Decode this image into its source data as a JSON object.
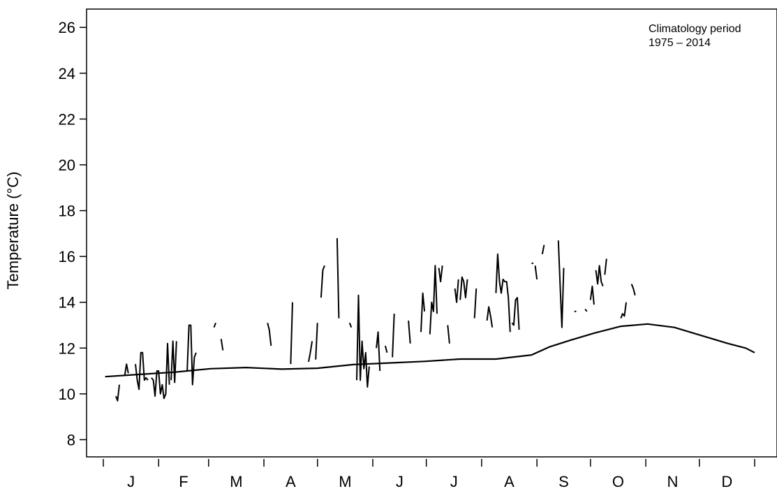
{
  "chart_data": {
    "type": "line",
    "ylabel": "Temperature (°C)",
    "ylim": [
      7.25,
      26.8
    ],
    "yticks": [
      8,
      10,
      12,
      14,
      16,
      18,
      20,
      22,
      24,
      26
    ],
    "month_labels": [
      "J",
      "F",
      "M",
      "A",
      "M",
      "J",
      "J",
      "A",
      "S",
      "O",
      "N",
      "D"
    ],
    "annotation": [
      "Climatology period",
      "1975 – 2014"
    ],
    "grid": false,
    "series": [
      {
        "role": "climatology",
        "x": [
          1,
          20,
          40,
          60,
          80,
          100,
          120,
          140,
          160,
          180,
          200,
          220,
          240,
          250,
          262,
          275,
          290,
          305,
          320,
          335,
          350,
          360,
          365
        ],
        "y": [
          10.75,
          10.85,
          10.95,
          11.1,
          11.15,
          11.08,
          11.12,
          11.28,
          11.35,
          11.42,
          11.52,
          11.52,
          11.7,
          12.05,
          12.35,
          12.65,
          12.95,
          13.05,
          12.9,
          12.55,
          12.2,
          12.0,
          11.8
        ]
      },
      {
        "role": "observed",
        "segments": [
          {
            "x": [
              7,
              8,
              9
            ],
            "y": [
              9.9,
              9.7,
              10.4
            ]
          },
          {
            "x": [
              12,
              13,
              14
            ],
            "y": [
              10.8,
              11.3,
              10.9
            ]
          },
          {
            "x": [
              18,
              19,
              20,
              21,
              22,
              23,
              24,
              25
            ],
            "y": [
              11.3,
              10.6,
              10.2,
              11.8,
              11.8,
              10.6,
              10.7,
              10.6
            ]
          },
          {
            "x": [
              27,
              28,
              29,
              30,
              31,
              32,
              33,
              34,
              35,
              36,
              37
            ],
            "y": [
              10.7,
              10.6,
              9.9,
              11.0,
              11.0,
              10.0,
              10.4,
              9.8,
              10.0,
              12.2,
              10.4
            ]
          },
          {
            "x": [
              38,
              39,
              40,
              41
            ],
            "y": [
              10.6,
              12.3,
              10.5,
              12.3
            ]
          },
          {
            "x": [
              47,
              48,
              49,
              50,
              51,
              52
            ],
            "y": [
              11.0,
              13.0,
              13.0,
              10.4,
              11.6,
              11.8
            ]
          },
          {
            "x": [
              62,
              63
            ],
            "y": [
              12.9,
              13.1
            ]
          },
          {
            "x": [
              66,
              67
            ],
            "y": [
              12.4,
              11.9
            ]
          },
          {
            "x": [
              92,
              93,
              94
            ],
            "y": [
              13.1,
              12.8,
              12.1
            ]
          },
          {
            "x": [
              105,
              106
            ],
            "y": [
              11.3,
              14.0
            ]
          },
          {
            "x": [
              115,
              116,
              117
            ],
            "y": [
              11.4,
              11.8,
              12.3
            ]
          },
          {
            "x": [
              119,
              120
            ],
            "y": [
              11.5,
              13.1
            ]
          },
          {
            "x": [
              122,
              123,
              124
            ],
            "y": [
              14.2,
              15.4,
              15.6
            ]
          },
          {
            "x": [
              131,
              132
            ],
            "y": [
              16.8,
              13.3
            ]
          },
          {
            "x": [
              138,
              139
            ],
            "y": [
              13.1,
              12.9
            ]
          },
          {
            "x": [
              142,
              143,
              144,
              145,
              146,
              147,
              148,
              149
            ],
            "y": [
              10.6,
              14.3,
              10.6,
              12.3,
              11.1,
              11.8,
              10.3,
              11.2
            ]
          },
          {
            "x": [
              153,
              154,
              155
            ],
            "y": [
              12.0,
              12.7,
              11.0
            ]
          },
          {
            "x": [
              158,
              159
            ],
            "y": [
              12.1,
              11.8
            ]
          },
          {
            "x": [
              162,
              163
            ],
            "y": [
              11.6,
              13.5
            ]
          },
          {
            "x": [
              171,
              172
            ],
            "y": [
              13.2,
              12.2
            ]
          },
          {
            "x": [
              178,
              179,
              180
            ],
            "y": [
              12.7,
              14.4,
              13.6
            ]
          },
          {
            "x": [
              183,
              184,
              185,
              186,
              187
            ],
            "y": [
              12.6,
              14.0,
              13.6,
              15.6,
              13.5
            ]
          },
          {
            "x": [
              188,
              189,
              190
            ],
            "y": [
              15.5,
              14.9,
              15.6
            ]
          },
          {
            "x": [
              193,
              194
            ],
            "y": [
              13.0,
              12.2
            ]
          },
          {
            "x": [
              197,
              198,
              199
            ],
            "y": [
              14.6,
              14.0,
              15.0
            ]
          },
          {
            "x": [
              200,
              201,
              202,
              203,
              204
            ],
            "y": [
              14.1,
              15.1,
              14.9,
              14.2,
              15.0
            ]
          },
          {
            "x": [
              208,
              209
            ],
            "y": [
              13.3,
              14.6
            ]
          },
          {
            "x": [
              215,
              216,
              217,
              218
            ],
            "y": [
              13.2,
              13.8,
              13.4,
              12.9
            ]
          },
          {
            "x": [
              220,
              221,
              222,
              223,
              224,
              225,
              226,
              227,
              228
            ],
            "y": [
              14.4,
              16.1,
              14.9,
              14.4,
              15.0,
              14.9,
              14.9,
              14.2,
              12.7
            ]
          },
          {
            "x": [
              229,
              230,
              231,
              232,
              233
            ],
            "y": [
              13.1,
              13.0,
              14.1,
              14.2,
              12.8
            ]
          },
          {
            "x": [
              240,
              241
            ],
            "y": [
              15.7,
              15.7
            ]
          },
          {
            "x": [
              242,
              243
            ],
            "y": [
              15.6,
              15.0
            ]
          },
          {
            "x": [
              246,
              247
            ],
            "y": [
              16.1,
              16.5
            ]
          },
          {
            "x": [
              255,
              256,
              257,
              258
            ],
            "y": [
              16.7,
              14.7,
              12.9,
              15.5
            ]
          },
          {
            "x": [
              264,
              265
            ],
            "y": [
              13.6,
              13.6
            ]
          },
          {
            "x": [
              270,
              271
            ],
            "y": [
              13.7,
              13.6
            ]
          },
          {
            "x": [
              273,
              274,
              275
            ],
            "y": [
              14.1,
              14.7,
              13.9
            ]
          },
          {
            "x": [
              276,
              277,
              278,
              279,
              280
            ],
            "y": [
              15.4,
              14.8,
              15.6,
              14.9,
              14.7
            ]
          },
          {
            "x": [
              281,
              282
            ],
            "y": [
              15.2,
              15.9
            ]
          },
          {
            "x": [
              290,
              291,
              292,
              293
            ],
            "y": [
              13.3,
              13.5,
              13.4,
              14.0
            ]
          },
          {
            "x": [
              296,
              297,
              298
            ],
            "y": [
              14.8,
              14.6,
              14.3
            ]
          }
        ]
      }
    ]
  }
}
